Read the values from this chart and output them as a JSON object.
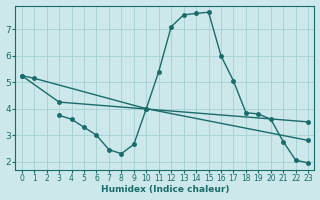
{
  "xlabel": "Humidex (Indice chaleur)",
  "background_color": "#cce8ea",
  "grid_color": "#aad4d6",
  "line_color": "#1a6b6b",
  "xlim": [
    -0.5,
    23.5
  ],
  "ylim": [
    1.7,
    7.9
  ],
  "xticks": [
    0,
    1,
    2,
    3,
    4,
    5,
    6,
    7,
    8,
    9,
    10,
    11,
    12,
    13,
    14,
    15,
    16,
    17,
    18,
    19,
    20,
    21,
    22,
    23
  ],
  "yticks": [
    2,
    3,
    4,
    5,
    6,
    7
  ],
  "line1_x": [
    0,
    1,
    10,
    11,
    12,
    13,
    14,
    15,
    16,
    17,
    18,
    19,
    20,
    21,
    22,
    23
  ],
  "line1_y": [
    5.25,
    5.15,
    4.0,
    5.4,
    7.1,
    7.55,
    7.6,
    7.65,
    6.0,
    5.05,
    3.85,
    3.8,
    3.6,
    2.75,
    2.05,
    1.95
  ],
  "line2_x": [
    0,
    3,
    23
  ],
  "line2_y": [
    5.25,
    4.25,
    3.5
  ],
  "line3_x": [
    3,
    4,
    5,
    6,
    7,
    8,
    9,
    10,
    23
  ],
  "line3_y": [
    3.75,
    3.6,
    3.3,
    3.0,
    2.45,
    2.3,
    2.65,
    4.0,
    2.8
  ]
}
